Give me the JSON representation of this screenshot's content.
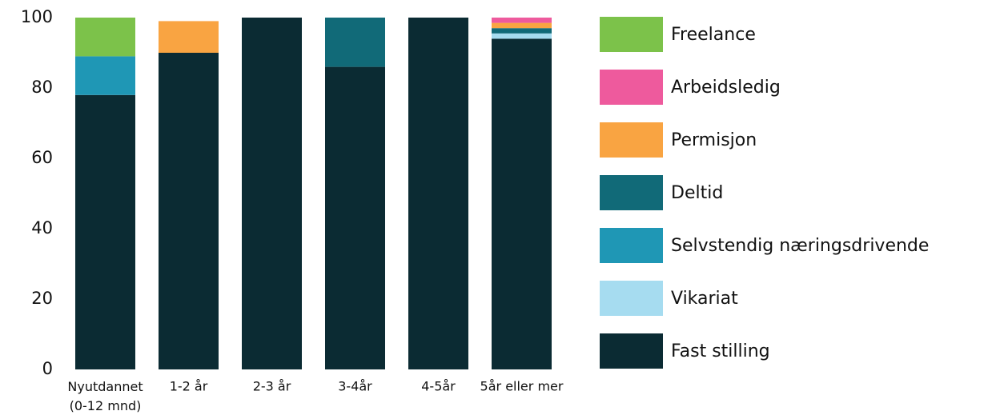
{
  "chart_data": {
    "type": "stacked-bar",
    "categories": [
      "Nyutdannet (0-12 mnd)",
      "1-2 år",
      "2-3 år",
      "3-4år",
      "4-5år",
      "5år eller mer"
    ],
    "series": [
      {
        "name": "Fast stilling",
        "color": "#0b2b33",
        "values": [
          78,
          90,
          100,
          86,
          100,
          94
        ]
      },
      {
        "name": "Vikariat",
        "color": "#a6dcf0",
        "values": [
          0,
          0,
          0,
          0,
          0,
          1.5
        ]
      },
      {
        "name": "Selvstendig næringsdrivende",
        "color": "#1f97b5",
        "values": [
          11,
          0,
          0,
          0,
          0,
          0
        ]
      },
      {
        "name": "Deltid",
        "color": "#116a78",
        "values": [
          0,
          0,
          0,
          14,
          0,
          1.5
        ]
      },
      {
        "name": "Permisjon",
        "color": "#f9a442",
        "values": [
          0,
          9,
          0,
          0,
          0,
          1.5
        ]
      },
      {
        "name": "Arbeidsledig",
        "color": "#ee5a9d",
        "values": [
          0,
          0,
          0,
          0,
          0,
          1.5
        ]
      },
      {
        "name": "Freelance",
        "color": "#7cc24a",
        "values": [
          11,
          0,
          0,
          0,
          0,
          0
        ]
      }
    ],
    "ylim": [
      0,
      100
    ],
    "yticks": [
      0,
      20,
      40,
      60,
      80,
      100
    ],
    "grid": false,
    "legend": "right"
  }
}
